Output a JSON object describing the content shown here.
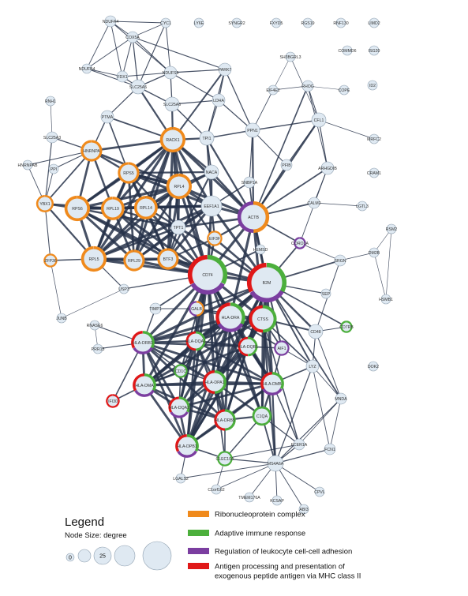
{
  "legend": {
    "title": "Legend",
    "node_size_label": "Node Size:  degree",
    "size_examples": [
      "0",
      "",
      "25",
      "",
      ""
    ],
    "categories": [
      {
        "color": "#f08a1c",
        "text": "Ribonucleoprotein complex"
      },
      {
        "color": "#4caf3c",
        "text": "Adaptive immune response"
      },
      {
        "color": "#7b3ea0",
        "text": "Regulation of leukocyte cell-cell adhesion"
      },
      {
        "color": "#e01818",
        "text": "Antigen processing and presentation of\nexogenous peptide antigen via MHC class II"
      }
    ]
  },
  "nodes": [
    {
      "id": "NDUFA4",
      "r": 7,
      "deg": 5
    },
    {
      "id": "CYC1",
      "r": 6,
      "deg": 4
    },
    {
      "id": "LY6E",
      "r": 6,
      "deg": 0
    },
    {
      "id": "SYNGR2",
      "r": 6,
      "deg": 0
    },
    {
      "id": "FXYD5",
      "r": 6,
      "deg": 0
    },
    {
      "id": "RGS19",
      "r": 6,
      "deg": 0
    },
    {
      "id": "RNF130",
      "r": 6,
      "deg": 0
    },
    {
      "id": "LIMD2",
      "r": 6,
      "deg": 0
    },
    {
      "id": "COX5A",
      "r": 7,
      "deg": 6
    },
    {
      "id": "COMMD6",
      "r": 6,
      "deg": 0
    },
    {
      "id": "ISG20",
      "r": 6,
      "deg": 0
    },
    {
      "id": "SH3BGRL3",
      "r": 6,
      "deg": 1
    },
    {
      "id": "NDUFB4",
      "r": 6,
      "deg": 4
    },
    {
      "id": "FDX1",
      "r": 7,
      "deg": 5
    },
    {
      "id": "NDUFS5",
      "r": 8,
      "deg": 7
    },
    {
      "id": "PARK7",
      "r": 8,
      "deg": 7
    },
    {
      "id": "ID2",
      "r": 6,
      "deg": 0
    },
    {
      "id": "SLC25A5",
      "r": 9,
      "deg": 9
    },
    {
      "id": "RHOG",
      "r": 7,
      "deg": 4
    },
    {
      "id": "EIF4E2",
      "r": 6,
      "deg": 2
    },
    {
      "id": "COPE",
      "r": 6,
      "deg": 1
    },
    {
      "id": "RNH1",
      "r": 6,
      "deg": 1
    },
    {
      "id": "SLC25A6",
      "r": 9,
      "deg": 9
    },
    {
      "id": "LDHA",
      "r": 8,
      "deg": 6
    },
    {
      "id": "PTMA",
      "r": 8,
      "deg": 6
    },
    {
      "id": "CFL1",
      "r": 9,
      "deg": 9
    },
    {
      "id": "PPN1",
      "r": 9,
      "deg": 9
    },
    {
      "id": "SLC25A3",
      "r": 7,
      "deg": 5
    },
    {
      "id": "RACK1",
      "r": 13,
      "deg": 30,
      "cats": [
        0
      ]
    },
    {
      "id": "TPI1",
      "r": 9,
      "deg": 9
    },
    {
      "id": "HNRNPA",
      "r": 11,
      "deg": 15,
      "cats": [
        0
      ]
    },
    {
      "id": "MRFC2",
      "r": 6,
      "deg": 2
    },
    {
      "id": "HNRNPAB",
      "r": 6,
      "deg": 2
    },
    {
      "id": "PPI",
      "r": 6,
      "deg": 2
    },
    {
      "id": "RPS5",
      "r": 11,
      "deg": 22,
      "cats": [
        0
      ]
    },
    {
      "id": "NACA",
      "r": 9,
      "deg": 12
    },
    {
      "id": "PFIB",
      "r": 7,
      "deg": 4
    },
    {
      "id": "ARHGDIB",
      "r": 8,
      "deg": 5
    },
    {
      "id": "CRAM1",
      "r": 6,
      "deg": 2
    },
    {
      "id": "RPL4",
      "r": 13,
      "deg": 28,
      "cats": [
        0
      ]
    },
    {
      "id": "SNBP1A",
      "r": 7,
      "deg": 4
    },
    {
      "id": "YBX1",
      "r": 9,
      "deg": 10,
      "cats": [
        0
      ]
    },
    {
      "id": "RPS6",
      "r": 13,
      "deg": 28,
      "cats": [
        0
      ]
    },
    {
      "id": "RPL19",
      "r": 12,
      "deg": 24,
      "cats": [
        0
      ]
    },
    {
      "id": "RPL14",
      "r": 12,
      "deg": 24,
      "cats": [
        0
      ]
    },
    {
      "id": "EEF1A1",
      "r": 13,
      "deg": 28
    },
    {
      "id": "CALM2",
      "r": 7,
      "deg": 5
    },
    {
      "id": "LGTL3",
      "r": 6,
      "deg": 2
    },
    {
      "id": "ACTB",
      "r": 16,
      "deg": 32,
      "cats": [
        0,
        2
      ]
    },
    {
      "id": "TPT1",
      "r": 9,
      "deg": 13
    },
    {
      "id": "ZFP36",
      "r": 7,
      "deg": 4,
      "cats": [
        0
      ]
    },
    {
      "id": "EIF3F",
      "r": 8,
      "deg": 10,
      "cats": [
        0
      ]
    },
    {
      "id": "CORO1A",
      "r": 6,
      "deg": 4,
      "cats": [
        2
      ]
    },
    {
      "id": "RSM2",
      "r": 6,
      "deg": 2
    },
    {
      "id": "RPL5",
      "r": 13,
      "deg": 28,
      "cats": [
        0
      ]
    },
    {
      "id": "RPL29",
      "r": 11,
      "deg": 20,
      "cats": [
        0
      ]
    },
    {
      "id": "BTF3",
      "r": 11,
      "deg": 20,
      "cats": [
        0
      ]
    },
    {
      "id": "HEMSD",
      "r": 6,
      "deg": 4
    },
    {
      "id": "SRGN",
      "r": 7,
      "deg": 4
    },
    {
      "id": "DM2B",
      "r": 6,
      "deg": 2
    },
    {
      "id": "CD74",
      "r": 20,
      "deg": 40,
      "cats": [
        1,
        2,
        3
      ]
    },
    {
      "id": "B2M",
      "r": 20,
      "deg": 40,
      "cats": [
        1,
        2,
        3
      ]
    },
    {
      "id": "HSMB1",
      "r": 6,
      "deg": 2
    },
    {
      "id": "USP3",
      "r": 6,
      "deg": 2
    },
    {
      "id": "SEP",
      "r": 6,
      "deg": 2
    },
    {
      "id": "JUNB",
      "r": 6,
      "deg": 2
    },
    {
      "id": "TIMP1",
      "r": 7,
      "deg": 4
    },
    {
      "id": "GALB",
      "r": 8,
      "deg": 6,
      "cats": [
        0,
        2
      ]
    },
    {
      "id": "HLA-DRA",
      "r": 15,
      "deg": 30,
      "cats": [
        1,
        2,
        3
      ]
    },
    {
      "id": "CTSS",
      "r": 14,
      "deg": 26,
      "cats": [
        1,
        3
      ]
    },
    {
      "id": "RNASE6",
      "r": 6,
      "deg": 2
    },
    {
      "id": "CD48",
      "r": 9,
      "deg": 8
    },
    {
      "id": "CD7RB",
      "r": 6,
      "deg": 3,
      "cats": [
        1
      ]
    },
    {
      "id": "HLA-DRB1",
      "r": 12,
      "deg": 22,
      "cats": [
        1,
        2,
        3
      ]
    },
    {
      "id": "HLA-DQA1",
      "r": 10,
      "deg": 18,
      "cats": [
        1,
        3
      ]
    },
    {
      "id": "HLA-DQB1",
      "r": 10,
      "deg": 18,
      "cats": [
        1,
        3
      ]
    },
    {
      "id": "AIF1",
      "r": 8,
      "deg": 6,
      "cats": [
        2
      ]
    },
    {
      "id": "PRR15",
      "r": 6,
      "deg": 2
    },
    {
      "id": "CD1C",
      "r": 7,
      "deg": 5,
      "cats": [
        1
      ]
    },
    {
      "id": "LYZ",
      "r": 8,
      "deg": 5
    },
    {
      "id": "DOK2",
      "r": 6,
      "deg": 2
    },
    {
      "id": "HLA-DPA1",
      "r": 12,
      "deg": 22,
      "cats": [
        1,
        3
      ]
    },
    {
      "id": "HLA-DMA",
      "r": 12,
      "deg": 22,
      "cats": [
        1,
        2,
        3
      ]
    },
    {
      "id": "HLA-DMB",
      "r": 12,
      "deg": 22,
      "cats": [
        1,
        2,
        3
      ]
    },
    {
      "id": "IFI30",
      "r": 7,
      "deg": 5,
      "cats": [
        3
      ]
    },
    {
      "id": "HLA-DQA2",
      "r": 11,
      "deg": 20,
      "cats": [
        1,
        2,
        3
      ]
    },
    {
      "id": "HLA-DRB5",
      "r": 11,
      "deg": 20,
      "cats": [
        1,
        3
      ]
    },
    {
      "id": "C1QA",
      "r": 10,
      "deg": 14,
      "cats": [
        1
      ]
    },
    {
      "id": "MNDA",
      "r": 7,
      "deg": 4
    },
    {
      "id": "FCER1A",
      "r": 7,
      "deg": 4
    },
    {
      "id": "HLA-DPB1",
      "r": 12,
      "deg": 22,
      "cats": [
        1,
        2,
        3
      ]
    },
    {
      "id": "CLEC10A",
      "r": 8,
      "deg": 6,
      "cats": [
        1
      ]
    },
    {
      "id": "FCN1",
      "r": 7,
      "deg": 4
    },
    {
      "id": "MS4A6A",
      "r": 10,
      "deg": 12
    },
    {
      "id": "LGALS2",
      "r": 6,
      "deg": 2
    },
    {
      "id": "C1orf162",
      "r": 6,
      "deg": 2
    },
    {
      "id": "CPVL",
      "r": 6,
      "deg": 2
    },
    {
      "id": "ABI3",
      "r": 6,
      "deg": 2
    },
    {
      "id": "TMEM176A",
      "r": 6,
      "deg": 2
    },
    {
      "id": "KCSAP",
      "r": 6,
      "deg": 2
    }
  ]
}
